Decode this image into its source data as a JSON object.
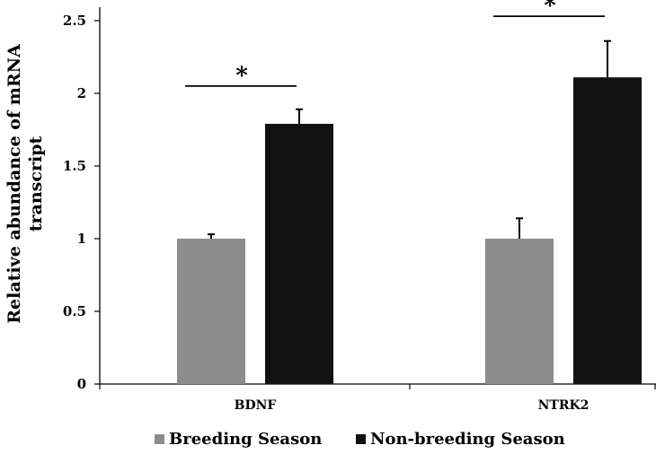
{
  "chart_data": {
    "type": "bar",
    "title": "",
    "xlabel": "",
    "ylabel": "Relative abundance of mRNA transcript",
    "ylabel_lines": [
      "Relative abundance of mRNA",
      "transcript"
    ],
    "ylim": [
      0,
      2.6
    ],
    "yticks": [
      0,
      0.5,
      1,
      1.5,
      2,
      2.5
    ],
    "ytick_labels": [
      "0",
      "0.5",
      "1",
      "1.5",
      "2",
      "2.5"
    ],
    "grid": false,
    "categories": [
      "BDNF",
      "NTRK2"
    ],
    "series": [
      {
        "name": "Breeding Season",
        "color": "#8c8c8c",
        "values": [
          1.0,
          1.0
        ],
        "errors": [
          0.03,
          0.14
        ]
      },
      {
        "name": "Non-breeding Season",
        "color": "#111111",
        "values": [
          1.79,
          2.11
        ],
        "errors": [
          0.1,
          0.25
        ]
      }
    ],
    "significance": [
      {
        "category": "BDNF",
        "label": "*",
        "y": 2.05
      },
      {
        "category": "NTRK2",
        "label": "*",
        "y": 2.53
      }
    ],
    "legend": {
      "position": "bottom",
      "entries": [
        "Breeding Season",
        "Non-breeding Season"
      ]
    }
  }
}
